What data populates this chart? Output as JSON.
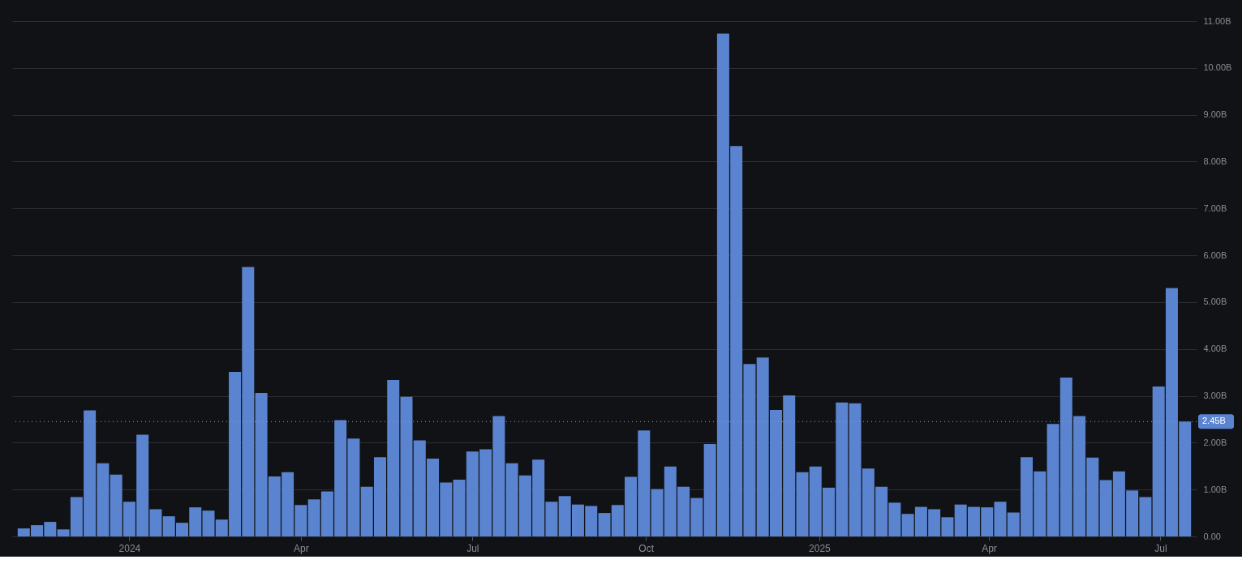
{
  "chart_data": {
    "type": "bar",
    "x": [
      "2023-11-06",
      "2023-11-13",
      "2023-11-20",
      "2023-11-27",
      "2023-12-04",
      "2023-12-11",
      "2023-12-18",
      "2023-12-25",
      "2024-01-01",
      "2024-01-08",
      "2024-01-15",
      "2024-01-22",
      "2024-01-29",
      "2024-02-05",
      "2024-02-12",
      "2024-02-19",
      "2024-02-26",
      "2024-03-04",
      "2024-03-11",
      "2024-03-18",
      "2024-03-25",
      "2024-04-01",
      "2024-04-08",
      "2024-04-15",
      "2024-04-22",
      "2024-04-29",
      "2024-05-06",
      "2024-05-13",
      "2024-05-20",
      "2024-05-27",
      "2024-06-03",
      "2024-06-10",
      "2024-06-17",
      "2024-06-24",
      "2024-07-01",
      "2024-07-08",
      "2024-07-15",
      "2024-07-22",
      "2024-07-29",
      "2024-08-05",
      "2024-08-12",
      "2024-08-19",
      "2024-08-26",
      "2024-09-02",
      "2024-09-09",
      "2024-09-16",
      "2024-09-23",
      "2024-09-30",
      "2024-10-07",
      "2024-10-14",
      "2024-10-21",
      "2024-10-28",
      "2024-11-04",
      "2024-11-11",
      "2024-11-18",
      "2024-11-25",
      "2024-12-02",
      "2024-12-09",
      "2024-12-16",
      "2024-12-23",
      "2024-12-30",
      "2025-01-06",
      "2025-01-13",
      "2025-01-20",
      "2025-01-27",
      "2025-02-03",
      "2025-02-10",
      "2025-02-17",
      "2025-02-24",
      "2025-03-03",
      "2025-03-10",
      "2025-03-17",
      "2025-03-24",
      "2025-03-31",
      "2025-04-07",
      "2025-04-14",
      "2025-04-21",
      "2025-04-28",
      "2025-05-05",
      "2025-05-12",
      "2025-05-19",
      "2025-05-26",
      "2025-06-02",
      "2025-06-09",
      "2025-06-16",
      "2025-06-23",
      "2025-06-30",
      "2025-07-07",
      "2025-07-14"
    ],
    "series": [
      {
        "color": "#5b84d0",
        "values": [
          0.17,
          0.24,
          0.31,
          0.15,
          0.84,
          2.69,
          1.56,
          1.32,
          0.74,
          2.17,
          0.58,
          0.43,
          0.29,
          0.62,
          0.55,
          0.36,
          3.51,
          5.75,
          3.06,
          1.28,
          1.37,
          0.67,
          0.79,
          0.96,
          2.48,
          2.09,
          1.06,
          1.69,
          3.34,
          2.98,
          2.05,
          1.66,
          1.15,
          1.21,
          1.81,
          1.86,
          2.57,
          1.56,
          1.3,
          1.64,
          0.74,
          0.86,
          0.68,
          0.65,
          0.5,
          0.67,
          1.27,
          2.26,
          1.01,
          1.49,
          1.06,
          0.82,
          1.97,
          10.73,
          8.33,
          3.68,
          3.82,
          2.7,
          3.01,
          1.37,
          1.49,
          1.04,
          2.86,
          2.84,
          1.45,
          1.06,
          0.72,
          0.48,
          0.63,
          0.58,
          0.41,
          0.68,
          0.63,
          0.62,
          0.74,
          0.51,
          1.69,
          1.39,
          2.4,
          3.39,
          2.57,
          1.68,
          1.2,
          1.39,
          0.98,
          0.84,
          3.2,
          5.3,
          2.45
        ]
      }
    ],
    "xlim": [
      "2023-11-02",
      "2025-07-18"
    ],
    "xticks": [
      {
        "value": "2024-01-01",
        "label": "2024"
      },
      {
        "value": "2024-04-01",
        "label": "Apr"
      },
      {
        "value": "2024-07-01",
        "label": "Jul"
      },
      {
        "value": "2024-10-01",
        "label": "Oct"
      },
      {
        "value": "2025-01-01",
        "label": "2025"
      },
      {
        "value": "2025-04-01",
        "label": "Apr"
      },
      {
        "value": "2025-07-01",
        "label": "Jul"
      }
    ],
    "ylim": [
      0,
      11
    ],
    "yticks": [
      {
        "value": 0,
        "label": "0.00"
      },
      {
        "value": 1,
        "label": "1.00B"
      },
      {
        "value": 2,
        "label": "2.00B"
      },
      {
        "value": 3,
        "label": "3.00B"
      },
      {
        "value": 4,
        "label": "4.00B"
      },
      {
        "value": 5,
        "label": "5.00B"
      },
      {
        "value": 6,
        "label": "6.00B"
      },
      {
        "value": 7,
        "label": "7.00B"
      },
      {
        "value": 8,
        "label": "8.00B"
      },
      {
        "value": 9,
        "label": "9.00B"
      },
      {
        "value": 10,
        "label": "10.00B"
      },
      {
        "value": 11,
        "label": "11.00B"
      }
    ],
    "ref_lines": [
      {
        "axis": "y",
        "value": 2.45,
        "label": "2.45B",
        "color": "#9a9da3",
        "line_style": "dotted"
      }
    ],
    "grid": "y"
  }
}
